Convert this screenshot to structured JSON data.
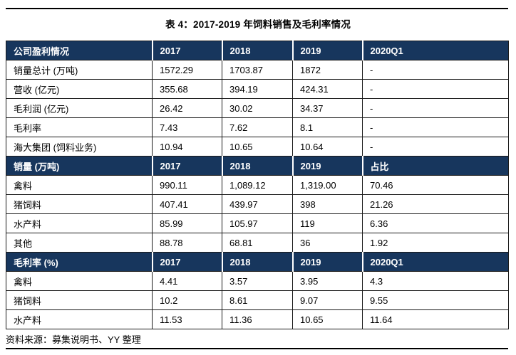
{
  "title": "表 4：2017-2019 年饲料销售及毛利率情况",
  "source_note": "资料来源：募集说明书、YY 整理",
  "colors": {
    "header_bg": "#17365D",
    "header_text": "#FFFFFF",
    "grid_line": "#1a1a1a"
  },
  "table": {
    "sections": [
      {
        "header": [
          "公司盈利情况",
          "2017",
          "2018",
          "2019",
          "2020Q1"
        ],
        "rows": [
          [
            "销量总计 (万吨)",
            "1572.29",
            "1703.87",
            "1872",
            "-"
          ],
          [
            "营收 (亿元)",
            "355.68",
            "394.19",
            "424.31",
            "-"
          ],
          [
            "毛利润 (亿元)",
            "26.42",
            "30.02",
            "34.37",
            "-"
          ],
          [
            "毛利率",
            "7.43",
            "7.62",
            "8.1",
            "-"
          ],
          [
            "海大集团 (饲料业务)",
            "10.94",
            "10.65",
            "10.64",
            "-"
          ]
        ]
      },
      {
        "header": [
          "销量 (万吨)",
          "2017",
          "2018",
          "2019",
          "占比"
        ],
        "rows": [
          [
            "禽料",
            "990.11",
            "1,089.12",
            "1,319.00",
            "70.46"
          ],
          [
            "猪饲料",
            "407.41",
            "439.97",
            "398",
            "21.26"
          ],
          [
            "水产料",
            "85.99",
            "105.97",
            "119",
            "6.36"
          ],
          [
            "其他",
            "88.78",
            "68.81",
            "36",
            "1.92"
          ]
        ]
      },
      {
        "header": [
          "毛利率 (%)",
          "2017",
          "2018",
          "2019",
          "2020Q1"
        ],
        "rows": [
          [
            "禽料",
            "4.41",
            "3.57",
            "3.95",
            "4.3"
          ],
          [
            "猪饲料",
            "10.2",
            "8.61",
            "9.07",
            "9.55"
          ],
          [
            "水产料",
            "11.53",
            "11.36",
            "10.65",
            "11.64"
          ]
        ]
      }
    ]
  }
}
